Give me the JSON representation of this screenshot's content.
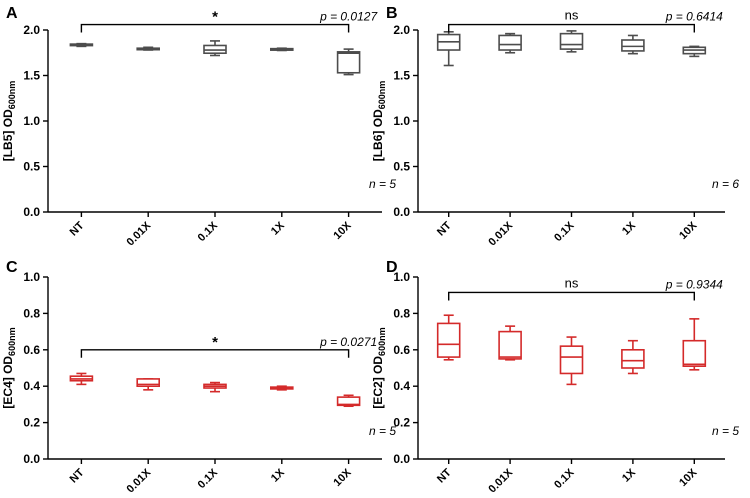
{
  "colors": {
    "gray": "#4d4d4d",
    "red": "#d42a2a",
    "axis": "#000000"
  },
  "chart_data": [
    {
      "type": "box",
      "panel": "A",
      "color": "#4d4d4d",
      "ylabel_main": "[LB5] OD",
      "ylabel_sub": "600nm",
      "ylim": [
        0,
        2.0
      ],
      "yticks": [
        "0.0",
        "0.5",
        "1.0",
        "1.5",
        "2.0"
      ],
      "ytick_values": [
        0,
        0.5,
        1.0,
        1.5,
        2.0
      ],
      "categories": [
        "NT",
        "0.01X",
        "0.1X",
        "1X",
        "10X"
      ],
      "boxes": [
        {
          "min": 1.82,
          "q1": 1.83,
          "median": 1.835,
          "q3": 1.845,
          "max": 1.85
        },
        {
          "min": 1.78,
          "q1": 1.785,
          "median": 1.79,
          "q3": 1.8,
          "max": 1.81
        },
        {
          "min": 1.72,
          "q1": 1.745,
          "median": 1.78,
          "q3": 1.83,
          "max": 1.88
        },
        {
          "min": 1.775,
          "q1": 1.78,
          "median": 1.785,
          "q3": 1.795,
          "max": 1.8
        },
        {
          "min": 1.51,
          "q1": 1.53,
          "median": 1.745,
          "q3": 1.76,
          "max": 1.79
        }
      ],
      "bracket": {
        "from": "NT",
        "to": "10X",
        "level": 2.06,
        "significance": "*",
        "p_text": "p = 0.0127"
      },
      "n_text": "n = 5"
    },
    {
      "type": "box",
      "panel": "B",
      "color": "#4d4d4d",
      "ylabel_main": "[LB6] OD",
      "ylabel_sub": "600nm",
      "ylim": [
        0,
        2.0
      ],
      "yticks": [
        "0.0",
        "0.5",
        "1.0",
        "1.5",
        "2.0"
      ],
      "ytick_values": [
        0,
        0.5,
        1.0,
        1.5,
        2.0
      ],
      "categories": [
        "NT",
        "0.01X",
        "0.1X",
        "1X",
        "10X"
      ],
      "boxes": [
        {
          "min": 1.61,
          "q1": 1.78,
          "median": 1.87,
          "q3": 1.95,
          "max": 1.98
        },
        {
          "min": 1.75,
          "q1": 1.78,
          "median": 1.84,
          "q3": 1.94,
          "max": 1.96
        },
        {
          "min": 1.76,
          "q1": 1.79,
          "median": 1.84,
          "q3": 1.96,
          "max": 1.99
        },
        {
          "min": 1.74,
          "q1": 1.77,
          "median": 1.82,
          "q3": 1.89,
          "max": 1.94
        },
        {
          "min": 1.71,
          "q1": 1.74,
          "median": 1.78,
          "q3": 1.81,
          "max": 1.82
        }
      ],
      "bracket": {
        "from": "NT",
        "to": "10X",
        "level": 2.06,
        "significance": "ns",
        "p_text": "p = 0.6414"
      },
      "n_text": "n = 6"
    },
    {
      "type": "box",
      "panel": "C",
      "color": "#d42a2a",
      "ylabel_main": "[EC4] OD",
      "ylabel_sub": "600nm",
      "ylim": [
        0,
        1.0
      ],
      "yticks": [
        "0.0",
        "0.2",
        "0.4",
        "0.6",
        "0.8",
        "1.0"
      ],
      "ytick_values": [
        0,
        0.2,
        0.4,
        0.6,
        0.8,
        1.0
      ],
      "categories": [
        "NT",
        "0.01X",
        "0.1X",
        "1X",
        "10X"
      ],
      "boxes": [
        {
          "min": 0.41,
          "q1": 0.43,
          "median": 0.44,
          "q3": 0.455,
          "max": 0.47
        },
        {
          "min": 0.38,
          "q1": 0.4,
          "median": 0.41,
          "q3": 0.44,
          "max": 0.44
        },
        {
          "min": 0.37,
          "q1": 0.39,
          "median": 0.4,
          "q3": 0.41,
          "max": 0.42
        },
        {
          "min": 0.38,
          "q1": 0.385,
          "median": 0.39,
          "q3": 0.395,
          "max": 0.4
        },
        {
          "min": 0.29,
          "q1": 0.295,
          "median": 0.3,
          "q3": 0.34,
          "max": 0.35
        }
      ],
      "bracket": {
        "from": "NT",
        "to": "10X",
        "level": 0.6,
        "significance": "*",
        "p_text": "p = 0.0271"
      },
      "n_text": "n = 5"
    },
    {
      "type": "box",
      "panel": "D",
      "color": "#d42a2a",
      "ylabel_main": "[EC2] OD",
      "ylabel_sub": "600nm",
      "ylim": [
        0,
        1.0
      ],
      "yticks": [
        "0.0",
        "0.2",
        "0.4",
        "0.6",
        "0.8",
        "1.0"
      ],
      "ytick_values": [
        0,
        0.2,
        0.4,
        0.6,
        0.8,
        1.0
      ],
      "categories": [
        "NT",
        "0.01X",
        "0.1X",
        "1X",
        "10X"
      ],
      "boxes": [
        {
          "min": 0.545,
          "q1": 0.56,
          "median": 0.63,
          "q3": 0.745,
          "max": 0.79
        },
        {
          "min": 0.545,
          "q1": 0.55,
          "median": 0.56,
          "q3": 0.7,
          "max": 0.73
        },
        {
          "min": 0.41,
          "q1": 0.47,
          "median": 0.56,
          "q3": 0.62,
          "max": 0.67
        },
        {
          "min": 0.47,
          "q1": 0.5,
          "median": 0.54,
          "q3": 0.6,
          "max": 0.65
        },
        {
          "min": 0.49,
          "q1": 0.51,
          "median": 0.52,
          "q3": 0.65,
          "max": 0.77
        }
      ],
      "bracket": {
        "from": "NT",
        "to": "10X",
        "level": 0.915,
        "significance": "ns",
        "p_text": "p = 0.9344"
      },
      "n_text": "n = 5"
    }
  ]
}
